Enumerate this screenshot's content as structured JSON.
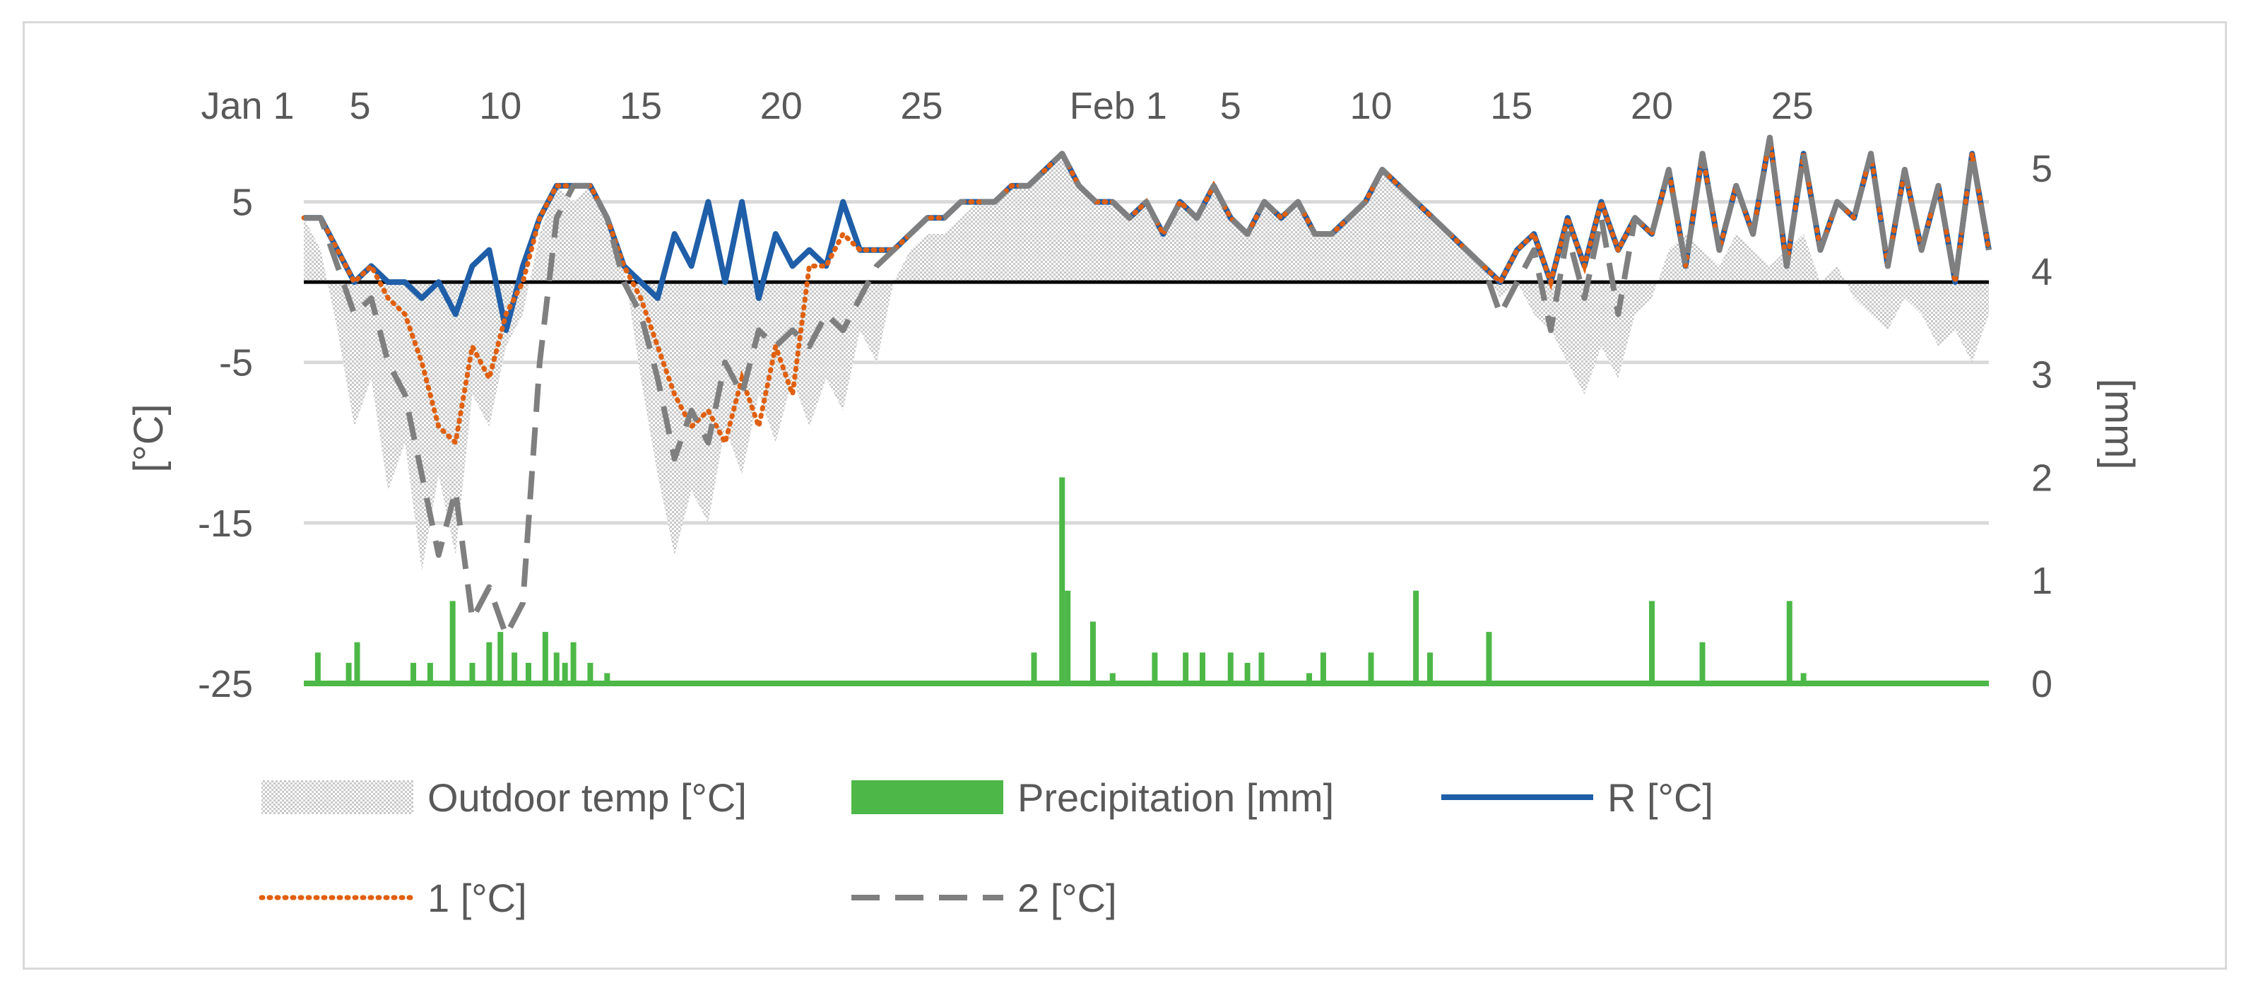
{
  "chart_data": {
    "type": "line",
    "title": "",
    "x_tick_labels": [
      "Jan 1",
      "5",
      "10",
      "15",
      "20",
      "25",
      "Feb 1",
      "5",
      "10",
      "15",
      "20",
      "25"
    ],
    "x_tick_days": [
      1,
      5,
      10,
      15,
      20,
      25,
      32,
      36,
      41,
      46,
      51,
      56
    ],
    "x_range_days": [
      3,
      63
    ],
    "y_left_label": "[°C]",
    "y_left_ticks": [
      "5",
      "-5",
      "-15",
      "-25"
    ],
    "y_left_tick_values": [
      5,
      -5,
      -15,
      -25
    ],
    "y_left_range": [
      -25,
      10
    ],
    "y_right_label": "[mm]",
    "y_right_ticks": [
      "5",
      "4",
      "3",
      "2",
      "1",
      "0"
    ],
    "y_right_tick_values": [
      5,
      4,
      3,
      2,
      1,
      0
    ],
    "y_right_range": [
      0,
      5
    ],
    "gridlines": "horizontal",
    "legend_position": "bottom",
    "legend": [
      {
        "key": "outdoor",
        "label": "Outdoor temp [°C]"
      },
      {
        "key": "precip",
        "label": "Precipitation [mm]"
      },
      {
        "key": "R",
        "label": "R [°C]"
      },
      {
        "key": "s1",
        "label": "1 [°C]"
      },
      {
        "key": "s2",
        "label": "2 [°C]"
      }
    ],
    "colors": {
      "outdoor": "#bfbfbf",
      "precip": "#4db848",
      "R": "#1f5ea8",
      "s1": "#e0600f",
      "s2": "#7f7f7f",
      "zero_line": "#000000",
      "grid": "#d9d9d9"
    },
    "series": [
      {
        "name": "Outdoor temp [°C]",
        "key": "outdoor",
        "axis": "left",
        "style": "area",
        "days": [
          3,
          3.6,
          4.2,
          4.8,
          5.4,
          6,
          6.6,
          7.2,
          7.8,
          8.4,
          9,
          9.6,
          10.2,
          10.8,
          11.4,
          12,
          12.6,
          13.2,
          13.8,
          14.4,
          15,
          15.6,
          16.2,
          16.8,
          17.4,
          18,
          18.6,
          19.2,
          19.8,
          20.4,
          21,
          21.6,
          22.2,
          22.8,
          23.4,
          24,
          24.6,
          25.2,
          25.8,
          26.4,
          27,
          27.6,
          28.2,
          28.8,
          29.4,
          30,
          30.6,
          31.2,
          31.8,
          32.4,
          33,
          33.6,
          34.2,
          34.8,
          35.4,
          36,
          36.6,
          37.2,
          37.8,
          38.4,
          39,
          39.6,
          40.2,
          40.8,
          41.4,
          42,
          42.6,
          43.2,
          43.8,
          44.4,
          45,
          45.6,
          46.2,
          46.8,
          47.4,
          48,
          48.6,
          49.2,
          49.8,
          50.4,
          51,
          51.6,
          52.2,
          52.8,
          53.4,
          54,
          54.6,
          55.2,
          55.8,
          56.4,
          57,
          57.6,
          58.2,
          58.8,
          59.4,
          60,
          60.6,
          61.2,
          61.8,
          62.4,
          63
        ],
        "values": [
          4,
          2,
          -3,
          -9,
          -6,
          -13,
          -10,
          -18,
          -12,
          -17,
          -7,
          -9,
          -4,
          -2,
          3,
          6,
          5,
          6,
          4,
          1,
          -6,
          -12,
          -17,
          -13,
          -15,
          -9,
          -12,
          -7,
          -10,
          -6,
          -9,
          -6,
          -8,
          -3,
          -5,
          0,
          2,
          3,
          3,
          4,
          5,
          5,
          6,
          6,
          7,
          8,
          6,
          5,
          5,
          4,
          5,
          3,
          5,
          4,
          6,
          4,
          3,
          5,
          4,
          5,
          3,
          3,
          4,
          5,
          7,
          6,
          5,
          4,
          3,
          2,
          1,
          -1,
          0,
          -2,
          -3,
          -5,
          -7,
          -4,
          -6,
          -2,
          -1,
          2,
          3,
          2,
          1,
          3,
          2,
          1,
          2,
          3,
          0,
          1,
          -1,
          -2,
          -3,
          -1,
          -2,
          -4,
          -3,
          -5,
          -2
        ]
      },
      {
        "name": "Precipitation [mm]",
        "key": "precip",
        "axis": "right",
        "style": "bars",
        "bars": [
          [
            3.5,
            0.3
          ],
          [
            4.6,
            0.2
          ],
          [
            4.9,
            0.4
          ],
          [
            6.9,
            0.2
          ],
          [
            7.5,
            0.2
          ],
          [
            8.3,
            0.8
          ],
          [
            9,
            0.2
          ],
          [
            9.6,
            0.4
          ],
          [
            10,
            0.5
          ],
          [
            10.5,
            0.3
          ],
          [
            11,
            0.2
          ],
          [
            11.6,
            0.5
          ],
          [
            12,
            0.3
          ],
          [
            12.3,
            0.2
          ],
          [
            12.6,
            0.4
          ],
          [
            13.2,
            0.2
          ],
          [
            13.8,
            0.1
          ],
          [
            29,
            0.3
          ],
          [
            30,
            2
          ],
          [
            30.2,
            0.9
          ],
          [
            31.1,
            0.6
          ],
          [
            31.8,
            0.1
          ],
          [
            33.3,
            0.3
          ],
          [
            34.4,
            0.3
          ],
          [
            35,
            0.3
          ],
          [
            36,
            0.3
          ],
          [
            36.6,
            0.2
          ],
          [
            37.1,
            0.3
          ],
          [
            38.8,
            0.1
          ],
          [
            39.3,
            0.3
          ],
          [
            41,
            0.3
          ],
          [
            42.6,
            0.9
          ],
          [
            43.1,
            0.3
          ],
          [
            45.2,
            0.5
          ],
          [
            51,
            0.8
          ],
          [
            52.8,
            0.4
          ],
          [
            55.9,
            0.8
          ],
          [
            56.4,
            0.1
          ]
        ]
      },
      {
        "name": "R [°C]",
        "key": "R",
        "axis": "left",
        "style": "solid",
        "days": [
          3,
          3.6,
          4.2,
          4.8,
          5.4,
          6,
          6.6,
          7.2,
          7.8,
          8.4,
          9,
          9.6,
          10.2,
          10.8,
          11.4,
          12,
          12.6,
          13.2,
          13.8,
          14.4,
          15,
          15.6,
          16.2,
          16.8,
          17.4,
          18,
          18.6,
          19.2,
          19.8,
          20.4,
          21,
          21.6,
          22.2,
          22.8,
          23.4,
          24,
          24.6,
          25.2,
          25.8,
          26.4,
          27,
          27.6,
          28.2,
          28.8,
          29.4,
          30,
          30.6,
          31.2,
          31.8,
          32.4,
          33,
          33.6,
          34.2,
          34.8,
          35.4,
          36,
          36.6,
          37.2,
          37.8,
          38.4,
          39,
          39.6,
          40.2,
          40.8,
          41.4,
          42,
          42.6,
          43.2,
          43.8,
          44.4,
          45,
          45.6,
          46.2,
          46.8,
          47.4,
          48,
          48.6,
          49.2,
          49.8,
          50.4,
          51,
          51.6,
          52.2,
          52.8,
          53.4,
          54,
          54.6,
          55.2,
          55.8,
          56.4,
          57,
          57.6,
          58.2,
          58.8,
          59.4,
          60,
          60.6,
          61.2,
          61.8,
          62.4,
          63
        ],
        "values": [
          4,
          4,
          2,
          0,
          1,
          0,
          0,
          -1,
          0,
          -2,
          1,
          2,
          -3,
          1,
          4,
          6,
          6,
          6,
          4,
          1,
          0,
          -1,
          3,
          1,
          5,
          0,
          5,
          -1,
          3,
          1,
          2,
          1,
          5,
          2,
          2,
          2,
          3,
          4,
          4,
          5,
          5,
          5,
          6,
          6,
          7,
          8,
          6,
          5,
          5,
          4,
          5,
          3,
          5,
          4,
          6,
          4,
          3,
          5,
          4,
          5,
          3,
          3,
          4,
          5,
          7,
          6,
          5,
          4,
          3,
          2,
          1,
          0,
          2,
          3,
          0,
          4,
          1,
          5,
          2,
          4,
          3,
          7,
          1,
          8,
          2,
          6,
          3,
          9,
          1,
          8,
          2,
          5,
          4,
          8,
          1,
          7,
          2,
          6,
          0,
          8,
          2
        ]
      },
      {
        "name": "1 [°C]",
        "key": "s1",
        "axis": "left",
        "style": "dotted",
        "days": [
          3,
          3.6,
          4.2,
          4.8,
          5.4,
          6,
          6.6,
          7.2,
          7.8,
          8.4,
          9,
          9.6,
          10.2,
          10.8,
          11.4,
          12,
          12.6,
          13.2,
          13.8,
          14.4,
          15,
          15.6,
          16.2,
          16.8,
          17.4,
          18,
          18.6,
          19.2,
          19.8,
          20.4,
          21,
          21.6,
          22.2,
          22.8,
          23.4,
          24,
          24.6,
          25.2,
          25.8,
          26.4,
          27,
          27.6,
          28.2,
          28.8,
          29.4,
          30,
          30.6,
          31.2,
          31.8,
          32.4,
          33,
          33.6,
          34.2,
          34.8,
          35.4,
          36,
          36.6,
          37.2,
          37.8,
          38.4,
          39,
          39.6,
          40.2,
          40.8,
          41.4,
          42,
          42.6,
          43.2,
          43.8,
          44.4,
          45,
          45.6,
          46.2,
          46.8,
          47.4,
          48,
          48.6,
          49.2,
          49.8,
          50.4,
          51,
          51.6,
          52.2,
          52.8,
          53.4,
          54,
          54.6,
          55.2,
          55.8,
          56.4,
          57,
          57.6,
          58.2,
          58.8,
          59.4,
          60,
          60.6,
          61.2,
          61.8,
          62.4,
          63
        ],
        "values": [
          4,
          4,
          2,
          0,
          1,
          -1,
          -2,
          -5,
          -9,
          -10,
          -4,
          -6,
          -2,
          0,
          4,
          6,
          6,
          6,
          4,
          1,
          -1,
          -4,
          -7,
          -9,
          -8,
          -10,
          -6,
          -9,
          -4,
          -7,
          1,
          1,
          3,
          2,
          2,
          2,
          3,
          4,
          4,
          5,
          5,
          5,
          6,
          6,
          7,
          8,
          6,
          5,
          5,
          4,
          5,
          3,
          5,
          4,
          6,
          4,
          3,
          5,
          4,
          5,
          3,
          3,
          4,
          5,
          7,
          6,
          5,
          4,
          3,
          2,
          1,
          0,
          2,
          3,
          0,
          4,
          1,
          5,
          2,
          4,
          3,
          7,
          1,
          8,
          2,
          6,
          3,
          9,
          1,
          8,
          2,
          5,
          4,
          8,
          1,
          7,
          2,
          6,
          0,
          8,
          2
        ]
      },
      {
        "name": "2 [°C]",
        "key": "s2",
        "axis": "left",
        "style": "dashed",
        "days": [
          3,
          3.6,
          4.2,
          4.8,
          5.4,
          6,
          6.6,
          7.2,
          7.8,
          8.4,
          9,
          9.6,
          10.2,
          10.8,
          11.4,
          12,
          12.6,
          13.2,
          13.8,
          14.4,
          15,
          15.6,
          16.2,
          16.8,
          17.4,
          18,
          18.6,
          19.2,
          19.8,
          20.4,
          21,
          21.6,
          22.2,
          22.8,
          23.4,
          24,
          24.6,
          25.2,
          25.8,
          26.4,
          27,
          27.6,
          28.2,
          28.8,
          29.4,
          30,
          30.6,
          31.2,
          31.8,
          32.4,
          33,
          33.6,
          34.2,
          34.8,
          35.4,
          36,
          36.6,
          37.2,
          37.8,
          38.4,
          39,
          39.6,
          40.2,
          40.8,
          41.4,
          42,
          42.6,
          43.2,
          43.8,
          44.4,
          45,
          45.6,
          46.2,
          46.8,
          47.4,
          48,
          48.6,
          49.2,
          49.8,
          50.4,
          51,
          51.6,
          52.2,
          52.8,
          53.4,
          54,
          54.6,
          55.2,
          55.8,
          56.4,
          57,
          57.6,
          58.2,
          58.8,
          59.4,
          60,
          60.6,
          61.2,
          61.8,
          62.4,
          63
        ],
        "values": [
          4,
          4,
          1,
          -2,
          -1,
          -5,
          -7,
          -12,
          -17,
          -13,
          -21,
          -19,
          -22,
          -20,
          -5,
          4,
          6,
          6,
          4,
          0,
          -2,
          -6,
          -11,
          -8,
          -10,
          -5,
          -7,
          -3,
          -4,
          -3,
          -4,
          -2,
          -3,
          -1,
          1,
          2,
          3,
          4,
          4,
          5,
          5,
          5,
          6,
          6,
          7,
          8,
          6,
          5,
          5,
          4,
          5,
          3,
          5,
          4,
          6,
          4,
          3,
          5,
          4,
          5,
          3,
          3,
          4,
          5,
          7,
          6,
          5,
          4,
          3,
          2,
          1,
          -2,
          0,
          2,
          -3,
          3,
          -1,
          4,
          -2,
          4,
          3,
          7,
          1,
          8,
          2,
          6,
          3,
          9,
          1,
          8,
          2,
          5,
          4,
          8,
          1,
          7,
          2,
          6,
          0,
          8,
          2
        ]
      }
    ]
  }
}
